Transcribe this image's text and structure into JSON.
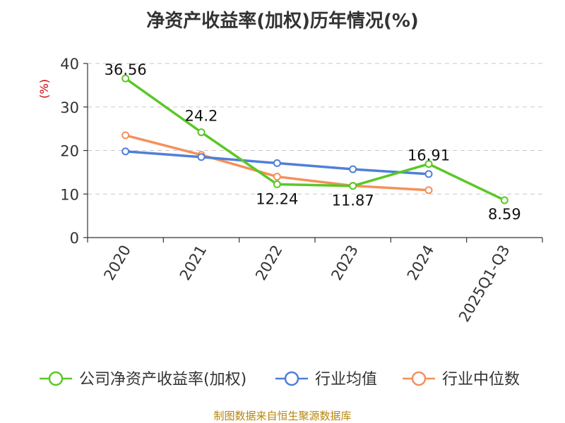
{
  "chart_data": {
    "type": "line",
    "title": "净资产收益率(加权)历年情况(%)",
    "ylabel": "(%)",
    "xlabel": "",
    "categories": [
      "2020",
      "2021",
      "2022",
      "2023",
      "2024",
      "2025Q1-Q3"
    ],
    "ylim": [
      0,
      40
    ],
    "yticks": [
      0,
      10,
      20,
      30,
      40
    ],
    "grid": true,
    "legend_position": "bottom",
    "series": [
      {
        "name": "公司净资产收益率(加权)",
        "color": "#5ac826",
        "values": [
          36.56,
          24.2,
          12.24,
          11.87,
          16.91,
          8.59
        ],
        "labels": [
          "36.56",
          "24.2",
          "12.24",
          "11.87",
          "16.91",
          "8.59"
        ]
      },
      {
        "name": "行业均值",
        "color": "#4f7fd8",
        "values": [
          19.8,
          18.5,
          17.1,
          15.7,
          14.6,
          null
        ],
        "labels": []
      },
      {
        "name": "行业中位数",
        "color": "#f5905a",
        "values": [
          23.5,
          19.0,
          14.0,
          11.9,
          10.9,
          null
        ],
        "labels": []
      }
    ]
  },
  "source": "制图数据来自恒生聚源数据库"
}
